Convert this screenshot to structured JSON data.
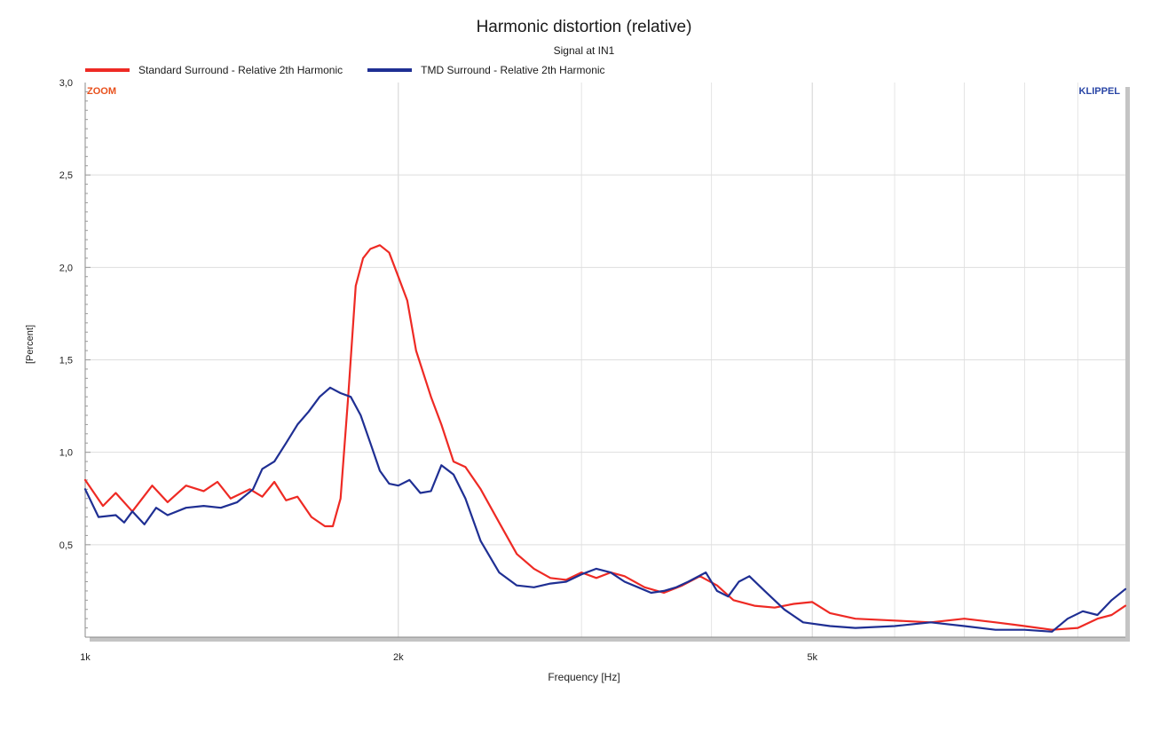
{
  "chart_data": {
    "type": "line",
    "title": "Harmonic distortion (relative)",
    "subtitle": "Signal at IN1",
    "xlabel": "Frequency [Hz]",
    "ylabel": "[Percent]",
    "x_scale": "log",
    "xlim": [
      1000,
      10000
    ],
    "ylim": [
      0,
      3
    ],
    "grid": true,
    "legend_position": "top-left",
    "corner_labels": {
      "left": "ZOOM",
      "right": "KLIPPEL"
    },
    "x_ticks": [
      {
        "value": 1000,
        "label": "1k"
      },
      {
        "value": 2000,
        "label": "2k"
      },
      {
        "value": 5000,
        "label": "5k"
      }
    ],
    "y_ticks": [
      {
        "value": 0.5,
        "label": "0,5"
      },
      {
        "value": 1.0,
        "label": "1,0"
      },
      {
        "value": 1.5,
        "label": "1,5"
      },
      {
        "value": 2.0,
        "label": "2,0"
      },
      {
        "value": 2.5,
        "label": "2,5"
      },
      {
        "value": 3.0,
        "label": "3,0"
      }
    ],
    "series": [
      {
        "name": "Standard Surround - Relative 2th Harmonic",
        "color": "#ee2a24",
        "points": [
          [
            1000,
            0.85
          ],
          [
            1040,
            0.71
          ],
          [
            1070,
            0.78
          ],
          [
            1110,
            0.68
          ],
          [
            1160,
            0.82
          ],
          [
            1200,
            0.73
          ],
          [
            1250,
            0.82
          ],
          [
            1300,
            0.79
          ],
          [
            1340,
            0.84
          ],
          [
            1380,
            0.75
          ],
          [
            1440,
            0.8
          ],
          [
            1480,
            0.76
          ],
          [
            1520,
            0.84
          ],
          [
            1560,
            0.74
          ],
          [
            1600,
            0.76
          ],
          [
            1650,
            0.65
          ],
          [
            1700,
            0.6
          ],
          [
            1730,
            0.6
          ],
          [
            1760,
            0.75
          ],
          [
            1790,
            1.3
          ],
          [
            1820,
            1.9
          ],
          [
            1850,
            2.05
          ],
          [
            1880,
            2.1
          ],
          [
            1920,
            2.12
          ],
          [
            1960,
            2.08
          ],
          [
            2000,
            1.95
          ],
          [
            2040,
            1.82
          ],
          [
            2080,
            1.55
          ],
          [
            2150,
            1.3
          ],
          [
            2200,
            1.15
          ],
          [
            2260,
            0.95
          ],
          [
            2320,
            0.92
          ],
          [
            2400,
            0.8
          ],
          [
            2500,
            0.62
          ],
          [
            2600,
            0.45
          ],
          [
            2700,
            0.37
          ],
          [
            2800,
            0.32
          ],
          [
            2900,
            0.31
          ],
          [
            3000,
            0.35
          ],
          [
            3100,
            0.32
          ],
          [
            3200,
            0.35
          ],
          [
            3300,
            0.33
          ],
          [
            3450,
            0.27
          ],
          [
            3600,
            0.24
          ],
          [
            3750,
            0.28
          ],
          [
            3900,
            0.33
          ],
          [
            4050,
            0.28
          ],
          [
            4200,
            0.2
          ],
          [
            4400,
            0.17
          ],
          [
            4600,
            0.16
          ],
          [
            4800,
            0.18
          ],
          [
            5000,
            0.19
          ],
          [
            5200,
            0.13
          ],
          [
            5500,
            0.1
          ],
          [
            6000,
            0.09
          ],
          [
            6500,
            0.08
          ],
          [
            7000,
            0.1
          ],
          [
            7500,
            0.08
          ],
          [
            8000,
            0.06
          ],
          [
            8500,
            0.04
          ],
          [
            9000,
            0.05
          ],
          [
            9400,
            0.1
          ],
          [
            9700,
            0.12
          ],
          [
            10000,
            0.17
          ]
        ]
      },
      {
        "name": "TMD Surround - Relative 2th Harmonic",
        "color": "#1f2f93",
        "points": [
          [
            1000,
            0.8
          ],
          [
            1030,
            0.65
          ],
          [
            1070,
            0.66
          ],
          [
            1090,
            0.62
          ],
          [
            1110,
            0.68
          ],
          [
            1140,
            0.61
          ],
          [
            1170,
            0.7
          ],
          [
            1200,
            0.66
          ],
          [
            1250,
            0.7
          ],
          [
            1300,
            0.71
          ],
          [
            1350,
            0.7
          ],
          [
            1400,
            0.73
          ],
          [
            1450,
            0.8
          ],
          [
            1480,
            0.91
          ],
          [
            1520,
            0.95
          ],
          [
            1560,
            1.05
          ],
          [
            1600,
            1.15
          ],
          [
            1640,
            1.22
          ],
          [
            1680,
            1.3
          ],
          [
            1720,
            1.35
          ],
          [
            1760,
            1.32
          ],
          [
            1800,
            1.3
          ],
          [
            1840,
            1.2
          ],
          [
            1880,
            1.05
          ],
          [
            1920,
            0.9
          ],
          [
            1960,
            0.83
          ],
          [
            2000,
            0.82
          ],
          [
            2050,
            0.85
          ],
          [
            2100,
            0.78
          ],
          [
            2150,
            0.79
          ],
          [
            2200,
            0.93
          ],
          [
            2260,
            0.88
          ],
          [
            2320,
            0.75
          ],
          [
            2400,
            0.52
          ],
          [
            2500,
            0.35
          ],
          [
            2600,
            0.28
          ],
          [
            2700,
            0.27
          ],
          [
            2800,
            0.29
          ],
          [
            2900,
            0.3
          ],
          [
            3000,
            0.34
          ],
          [
            3100,
            0.37
          ],
          [
            3200,
            0.35
          ],
          [
            3300,
            0.3
          ],
          [
            3400,
            0.27
          ],
          [
            3500,
            0.24
          ],
          [
            3600,
            0.25
          ],
          [
            3700,
            0.27
          ],
          [
            3800,
            0.3
          ],
          [
            3950,
            0.35
          ],
          [
            4050,
            0.25
          ],
          [
            4150,
            0.22
          ],
          [
            4250,
            0.3
          ],
          [
            4350,
            0.33
          ],
          [
            4500,
            0.25
          ],
          [
            4700,
            0.15
          ],
          [
            4900,
            0.08
          ],
          [
            5200,
            0.06
          ],
          [
            5500,
            0.05
          ],
          [
            6000,
            0.06
          ],
          [
            6500,
            0.08
          ],
          [
            7000,
            0.06
          ],
          [
            7500,
            0.04
          ],
          [
            8000,
            0.04
          ],
          [
            8500,
            0.03
          ],
          [
            8800,
            0.1
          ],
          [
            9100,
            0.14
          ],
          [
            9400,
            0.12
          ],
          [
            9700,
            0.2
          ],
          [
            10000,
            0.26
          ]
        ]
      }
    ]
  }
}
